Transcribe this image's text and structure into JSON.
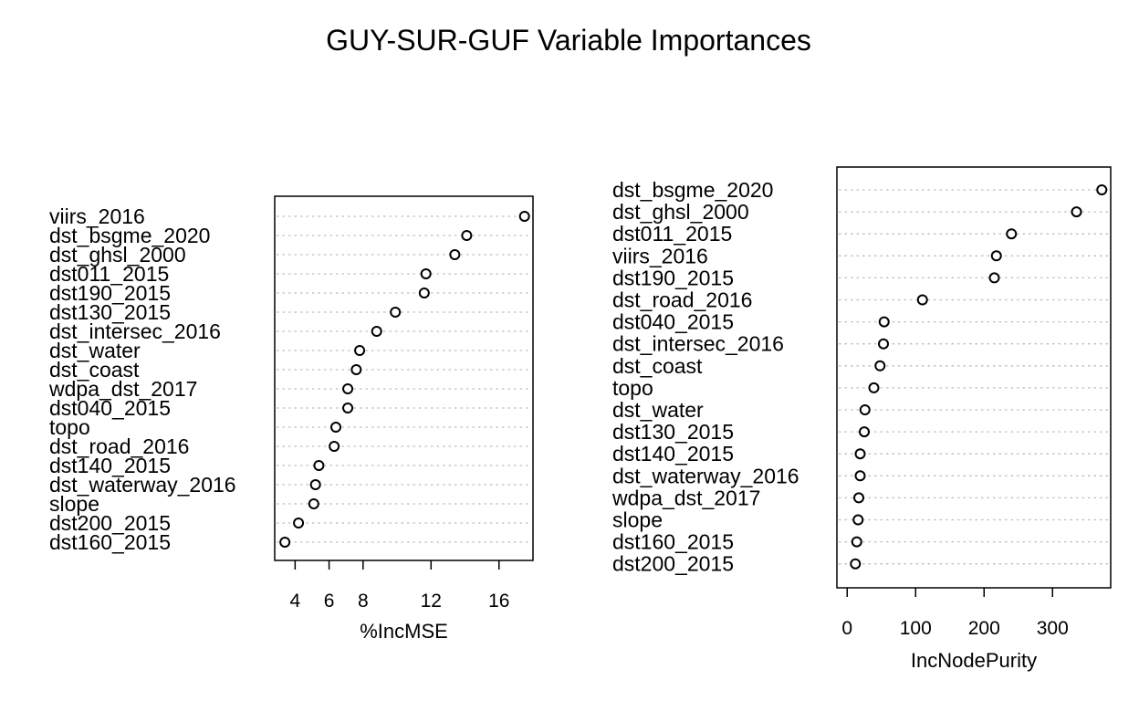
{
  "title": "GUY-SUR-GUF Variable Importances",
  "chart_data": [
    {
      "type": "scatter",
      "xlabel": "%IncMSE",
      "ylabel": "",
      "xlim": [
        2.8,
        18.0
      ],
      "xticks": [
        4,
        6,
        8,
        12,
        16
      ],
      "xtick_labels": [
        "4",
        "6",
        "8",
        "12",
        "16"
      ],
      "grid": "dotted horizontal guides",
      "variables": [
        "viirs_2016",
        "dst_bsgme_2020",
        "dst_ghsl_2000",
        "dst011_2015",
        "dst190_2015",
        "dst130_2015",
        "dst_intersec_2016",
        "dst_water",
        "dst_coast",
        "wdpa_dst_2017",
        "dst040_2015",
        "topo",
        "dst_road_2016",
        "dst140_2015",
        "dst_waterway_2016",
        "slope",
        "dst200_2015",
        "dst160_2015"
      ],
      "values": [
        17.5,
        14.1,
        13.4,
        11.7,
        11.6,
        9.9,
        8.8,
        7.8,
        7.6,
        7.1,
        7.1,
        6.4,
        6.3,
        5.4,
        5.2,
        5.1,
        4.2,
        3.4
      ]
    },
    {
      "type": "scatter",
      "xlabel": "IncNodePurity",
      "ylabel": "",
      "xlim": [
        -15,
        385
      ],
      "xticks": [
        0,
        100,
        200,
        300
      ],
      "xtick_labels": [
        "0",
        "100",
        "200",
        "300"
      ],
      "grid": "dotted horizontal guides",
      "variables": [
        "dst_bsgme_2020",
        "dst_ghsl_2000",
        "dst011_2015",
        "viirs_2016",
        "dst190_2015",
        "dst_road_2016",
        "dst040_2015",
        "dst_intersec_2016",
        "dst_coast",
        "topo",
        "dst_water",
        "dst130_2015",
        "dst140_2015",
        "dst_waterway_2016",
        "wdpa_dst_2017",
        "slope",
        "dst160_2015",
        "dst200_2015"
      ],
      "values": [
        372,
        335,
        240,
        218,
        215,
        110,
        54,
        53,
        48,
        39,
        26,
        25,
        19,
        19,
        17,
        16,
        14,
        12
      ]
    }
  ]
}
